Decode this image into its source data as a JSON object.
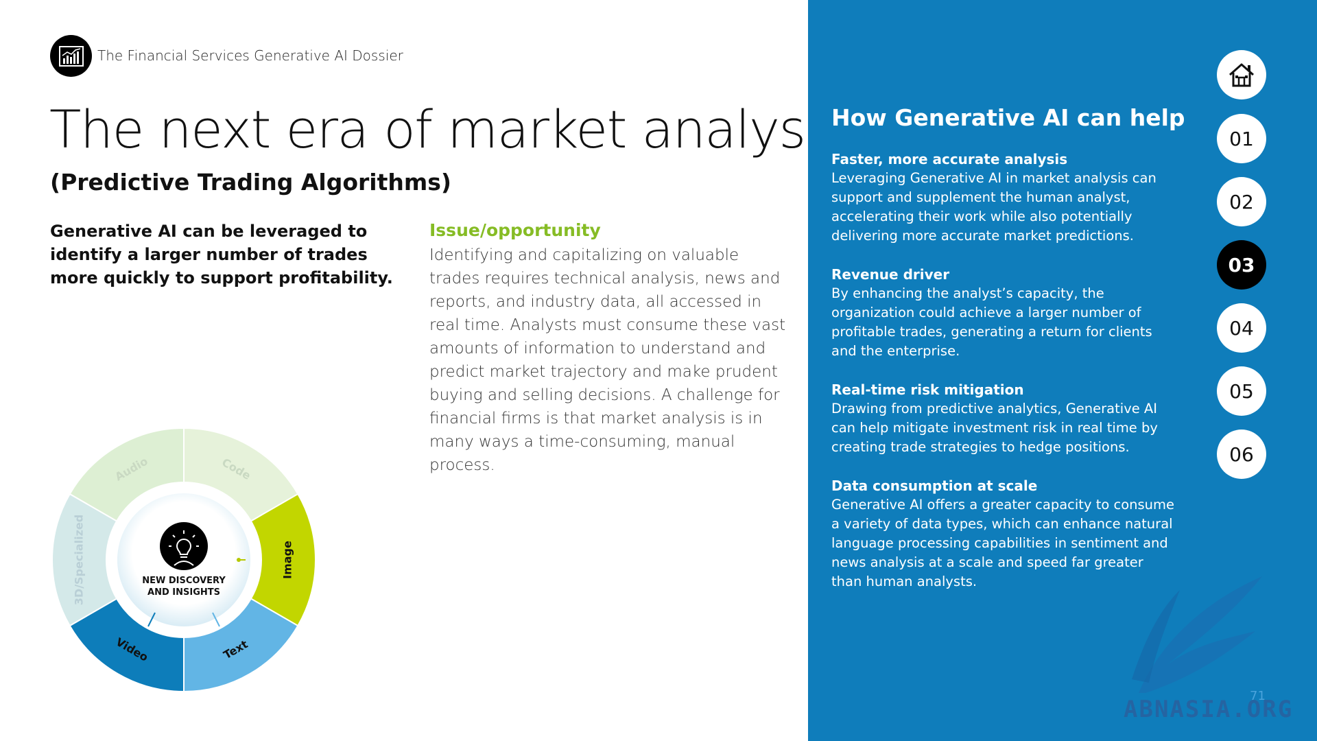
{
  "header": {
    "dossier_title": "The Financial Services Generative AI Dossier"
  },
  "title": "The next era of market analysis",
  "subtitle": "(Predictive Trading Algorithms)",
  "lead": "Generative AI can be leveraged to identify a larger number of trades more quickly to support profitability.",
  "issue": {
    "heading": "Issue/opportunity",
    "text": "Identifying and capitalizing on valuable trades requires technical analysis, news and reports, and industry data, all accessed in real time. Analysts must consume these vast amounts of information to understand and predict market trajectory and make prudent buying and selling decisions. A challenge for financial firms is that market analysis is in many ways a time-consuming, manual process."
  },
  "wheel": {
    "center_line1": "NEW DISCOVERY",
    "center_line2": "AND INSIGHTS",
    "segments": [
      {
        "label": "Audio",
        "color": "#ddefd3"
      },
      {
        "label": "Code",
        "color": "#e6f2da"
      },
      {
        "label": "Image",
        "color": "#c2d600"
      },
      {
        "label": "Text",
        "color": "#62b5e5"
      },
      {
        "label": "Video",
        "color": "#0d7dba"
      },
      {
        "label": "3D/Specialized",
        "color": "#d4e9e9"
      }
    ]
  },
  "help": {
    "title": "How Generative AI can help",
    "items": [
      {
        "heading": "Faster, more accurate analysis",
        "text": "Leveraging Generative AI in market analysis can support and supplement the human analyst, accelerating their work while also potentially delivering more accurate market predictions."
      },
      {
        "heading": "Revenue driver",
        "text": "By enhancing the analyst’s capacity, the organization could achieve a larger number of profitable trades, generating a return for clients and the enterprise."
      },
      {
        "heading": "Real-time risk mitigation",
        "text": "Drawing from predictive analytics, Generative AI can help mitigate investment risk in real time by creating trade strategies to hedge positions."
      },
      {
        "heading": "Data consumption at scale",
        "text": "Generative AI offers a greater capacity to consume a variety of data types, which can enhance natural language processing capabilities in sentiment and news analysis at a scale and speed far greater than human analysts."
      }
    ]
  },
  "nav": {
    "home_icon": "home-icon",
    "items": [
      "01",
      "02",
      "03",
      "04",
      "05",
      "06"
    ],
    "active": "03"
  },
  "page_number": "71",
  "watermark": "ABNASIA.ORG",
  "colors": {
    "accent_green": "#86bc25",
    "panel_blue": "#0f7dbb",
    "black": "#000000"
  }
}
